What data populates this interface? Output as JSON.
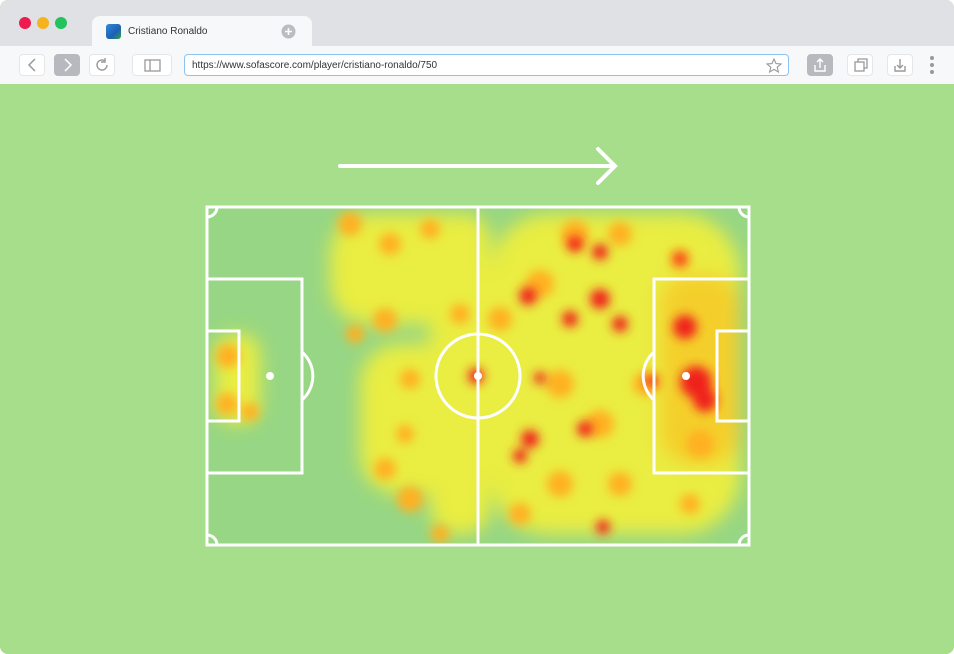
{
  "browser": {
    "tab_title": "Cristiano Ronaldo",
    "url": "https://www.sofascore.com/player/cristiano-ronaldo/750"
  }
}
